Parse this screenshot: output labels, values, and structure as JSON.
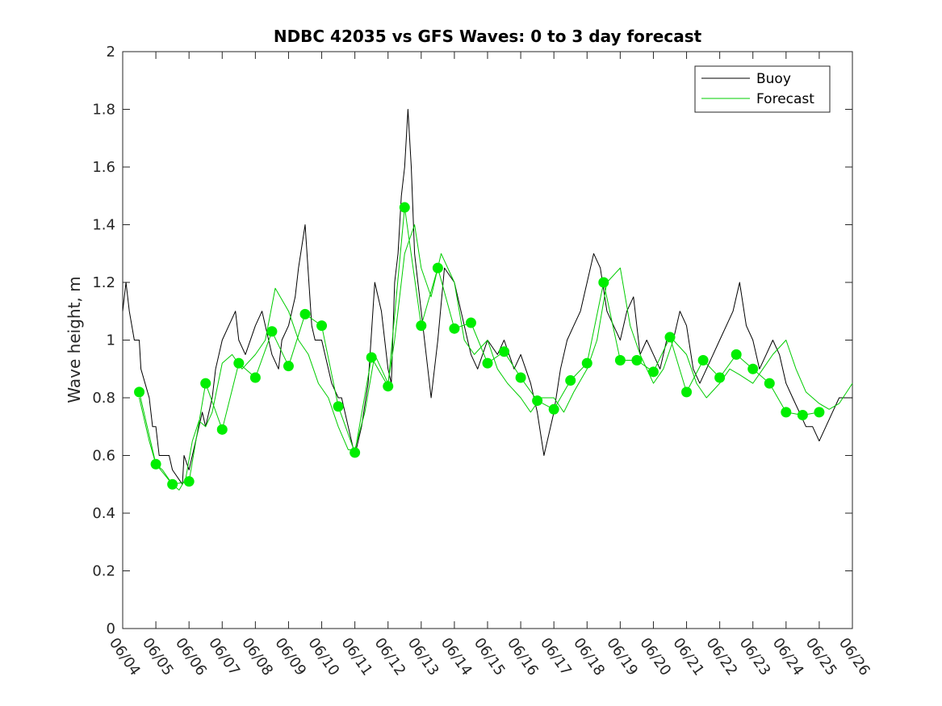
{
  "chart_data": {
    "type": "line",
    "title": "NDBC 42035 vs GFS Waves: 0 to 3 day forecast",
    "xlabel": "",
    "ylabel": "Wave height, m",
    "ylim": [
      0,
      2
    ],
    "yticks": [
      "0",
      "0.2",
      "0.4",
      "0.6",
      "0.8",
      "1",
      "1.2",
      "1.4",
      "1.6",
      "1.8",
      "2"
    ],
    "x_axis_unit": "days",
    "xlim": [
      0,
      22
    ],
    "xticks": [
      "06/04",
      "06/05",
      "06/06",
      "06/07",
      "06/08",
      "06/09",
      "06/10",
      "06/11",
      "06/12",
      "06/13",
      "06/14",
      "06/15",
      "06/16",
      "06/17",
      "06/18",
      "06/19",
      "06/20",
      "06/21",
      "06/22",
      "06/23",
      "06/24",
      "06/25",
      "06/26"
    ],
    "grid": false,
    "legend": {
      "position": "top-right",
      "entries": [
        {
          "label": "Buoy",
          "color": "#000000"
        },
        {
          "label": "Forecast",
          "color": "#00cc00"
        }
      ]
    },
    "colors": {
      "buoy": "#000000",
      "forecast": "#00cc00",
      "marker": "#00ee00"
    },
    "series": [
      {
        "name": "Buoy",
        "x": [
          0.0,
          0.1,
          0.2,
          0.35,
          0.5,
          0.55,
          0.8,
          0.9,
          1.0,
          1.1,
          1.2,
          1.4,
          1.5,
          1.8,
          1.85,
          2.0,
          2.1,
          2.3,
          2.4,
          2.5,
          2.7,
          2.8,
          3.0,
          3.2,
          3.4,
          3.5,
          3.7,
          4.0,
          4.2,
          4.4,
          4.5,
          4.7,
          4.8,
          5.0,
          5.2,
          5.3,
          5.5,
          5.7,
          5.8,
          6.0,
          6.2,
          6.3,
          6.5,
          6.6,
          6.8,
          7.0,
          7.2,
          7.4,
          7.6,
          7.8,
          8.0,
          8.1,
          8.2,
          8.3,
          8.4,
          8.5,
          8.6,
          8.7,
          8.8,
          9.0,
          9.3,
          9.5,
          9.7,
          10.0,
          10.2,
          10.4,
          10.5,
          10.7,
          11.0,
          11.3,
          11.5,
          11.8,
          12.0,
          12.3,
          12.5,
          12.7,
          13.0,
          13.2,
          13.4,
          13.6,
          13.8,
          14.0,
          14.2,
          14.4,
          14.6,
          14.8,
          15.0,
          15.2,
          15.4,
          15.6,
          15.8,
          16.0,
          16.2,
          16.4,
          16.6,
          16.8,
          17.0,
          17.2,
          17.4,
          17.6,
          17.8,
          18.0,
          18.2,
          18.4,
          18.6,
          18.8,
          19.0,
          19.2,
          19.4,
          19.6,
          19.8,
          20.0,
          20.2,
          20.4,
          20.6,
          20.8,
          21.0,
          21.2,
          21.4,
          21.6,
          21.8,
          22.0
        ],
        "values": [
          1.1,
          1.2,
          1.1,
          1.0,
          1.0,
          0.9,
          0.8,
          0.7,
          0.7,
          0.6,
          0.6,
          0.6,
          0.55,
          0.5,
          0.6,
          0.55,
          0.6,
          0.7,
          0.75,
          0.7,
          0.8,
          0.9,
          1.0,
          1.05,
          1.1,
          1.0,
          0.95,
          1.05,
          1.1,
          1.0,
          0.95,
          0.9,
          1.0,
          1.05,
          1.15,
          1.25,
          1.4,
          1.05,
          1.0,
          1.0,
          0.9,
          0.85,
          0.8,
          0.8,
          0.7,
          0.6,
          0.7,
          0.85,
          1.2,
          1.1,
          0.9,
          0.85,
          1.2,
          1.3,
          1.5,
          1.6,
          1.8,
          1.6,
          1.3,
          1.1,
          0.8,
          1.0,
          1.25,
          1.2,
          1.1,
          1.0,
          0.95,
          0.9,
          1.0,
          0.95,
          1.0,
          0.9,
          0.95,
          0.85,
          0.75,
          0.6,
          0.75,
          0.9,
          1.0,
          1.05,
          1.1,
          1.2,
          1.3,
          1.25,
          1.1,
          1.05,
          1.0,
          1.1,
          1.15,
          0.95,
          1.0,
          0.95,
          0.9,
          1.0,
          1.0,
          1.1,
          1.05,
          0.9,
          0.85,
          0.9,
          0.95,
          1.0,
          1.05,
          1.1,
          1.2,
          1.05,
          1.0,
          0.9,
          0.95,
          1.0,
          0.95,
          0.85,
          0.8,
          0.75,
          0.7,
          0.7,
          0.65,
          0.7,
          0.75,
          0.8,
          0.8,
          0.8
        ]
      },
      {
        "name": "Forecast",
        "x": [
          0.5,
          0.8,
          1.0,
          1.2,
          1.5,
          1.7,
          1.9,
          2.1,
          2.3,
          2.5,
          2.7,
          3.0,
          3.3,
          3.6,
          4.0,
          4.3,
          4.6,
          5.0,
          5.3,
          5.6,
          5.9,
          6.2,
          6.5,
          6.8,
          7.0,
          7.3,
          7.6,
          8.0,
          8.2,
          8.5,
          8.8,
          9.0,
          9.3,
          9.6,
          10.0,
          10.3,
          10.6,
          11.0,
          11.3,
          11.6,
          12.0,
          12.3,
          12.6,
          13.0,
          13.3,
          13.6,
          14.0,
          14.3,
          14.6,
          15.0,
          15.3,
          15.6,
          16.0,
          16.3,
          16.6,
          17.0,
          17.3,
          17.6,
          18.0,
          18.3,
          18.6,
          19.0,
          19.3,
          19.6,
          20.0,
          20.3,
          20.6,
          21.0,
          21.3,
          21.6,
          22.0
        ],
        "values": [
          0.8,
          0.65,
          0.57,
          0.55,
          0.5,
          0.48,
          0.52,
          0.65,
          0.72,
          0.7,
          0.75,
          0.92,
          0.95,
          0.9,
          0.95,
          1.0,
          1.18,
          1.1,
          1.0,
          0.95,
          0.85,
          0.8,
          0.7,
          0.62,
          0.62,
          0.75,
          0.95,
          0.85,
          1.0,
          1.3,
          1.4,
          1.25,
          1.15,
          1.3,
          1.2,
          1.0,
          0.95,
          1.0,
          0.9,
          0.85,
          0.8,
          0.75,
          0.8,
          0.8,
          0.75,
          0.82,
          0.9,
          1.0,
          1.2,
          1.25,
          1.05,
          0.95,
          0.85,
          0.9,
          1.0,
          0.95,
          0.85,
          0.8,
          0.85,
          0.9,
          0.88,
          0.85,
          0.9,
          0.95,
          1.0,
          0.9,
          0.82,
          0.78,
          0.76,
          0.78,
          0.85
        ]
      },
      {
        "name": "Forecast",
        "x": [
          0.5,
          1.0,
          1.5,
          2.0,
          2.5,
          3.0,
          3.5,
          4.0,
          4.5,
          5.0,
          5.5,
          6.0,
          6.5,
          7.0,
          7.5,
          8.0,
          8.5,
          9.0,
          9.5,
          10.0,
          10.5,
          11.0,
          11.5,
          12.0,
          12.5,
          13.0,
          13.5,
          14.0,
          14.5,
          15.0,
          15.5,
          16.0,
          16.5,
          17.0,
          17.5,
          18.0,
          18.5,
          19.0,
          19.5,
          20.0,
          20.5,
          21.0
        ],
        "values": [
          0.82,
          0.57,
          0.5,
          0.51,
          0.85,
          0.69,
          0.92,
          0.87,
          1.03,
          0.91,
          1.09,
          1.05,
          0.77,
          0.61,
          0.94,
          0.84,
          1.46,
          1.05,
          1.25,
          1.04,
          1.06,
          0.92,
          0.96,
          0.87,
          0.79,
          0.76,
          0.86,
          0.92,
          1.2,
          0.93,
          0.93,
          0.89,
          1.01,
          0.82,
          0.93,
          0.87,
          0.95,
          0.9,
          0.85,
          0.75,
          0.74,
          0.75
        ]
      }
    ],
    "points": {
      "name": "Forecast analysis points",
      "x": [
        0.5,
        1.0,
        1.5,
        2.0,
        2.5,
        3.0,
        3.5,
        4.0,
        4.5,
        5.0,
        5.5,
        6.0,
        6.5,
        7.0,
        7.5,
        8.0,
        8.5,
        9.0,
        9.5,
        10.0,
        10.5,
        11.0,
        11.5,
        12.0,
        12.5,
        13.0,
        13.5,
        14.0,
        14.5,
        15.0,
        15.5,
        16.0,
        16.5,
        17.0,
        17.5,
        18.0,
        18.5,
        19.0,
        19.5,
        20.0,
        20.5,
        21.0
      ],
      "values": [
        0.82,
        0.57,
        0.5,
        0.51,
        0.85,
        0.69,
        0.92,
        0.87,
        1.03,
        0.91,
        1.09,
        1.05,
        0.77,
        0.61,
        0.94,
        0.84,
        1.46,
        1.05,
        1.25,
        1.04,
        1.06,
        0.92,
        0.96,
        0.87,
        0.79,
        0.76,
        0.86,
        0.92,
        1.2,
        0.93,
        0.93,
        0.89,
        1.01,
        0.82,
        0.93,
        0.87,
        0.95,
        0.9,
        0.85,
        0.75,
        0.74,
        0.75
      ]
    }
  }
}
